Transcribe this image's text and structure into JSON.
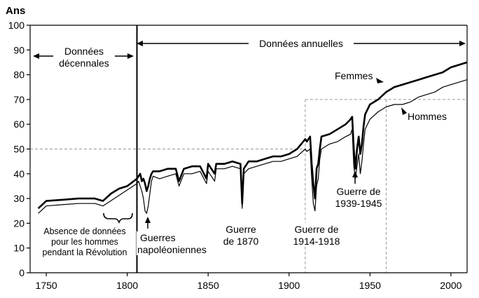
{
  "chart_data": {
    "type": "line",
    "title": "",
    "ylabel": "Ans",
    "xlabel": "",
    "xlim": [
      1740,
      2010
    ],
    "ylim": [
      0,
      100
    ],
    "xticks": [
      1750,
      1800,
      1850,
      1900,
      1950,
      2000
    ],
    "yticks": [
      0,
      10,
      20,
      30,
      40,
      50,
      60,
      70,
      80,
      90,
      100
    ],
    "xtick_labels": [
      "1750",
      "1800",
      "1850",
      "1900",
      "1950",
      "2000"
    ],
    "ytick_labels": [
      "0",
      "10",
      "20",
      "30",
      "40",
      "50",
      "60",
      "70",
      "80",
      "90",
      "100"
    ],
    "reference_lines": {
      "y_dashed": [
        50,
        70
      ],
      "x_dashed": [
        1910,
        1960
      ],
      "x_solid": 1806
    },
    "series": [
      {
        "name": "Femmes",
        "x": [
          1745,
          1750,
          1760,
          1770,
          1780,
          1785,
          1790,
          1795,
          1800,
          1806,
          1807,
          1808,
          1809,
          1810,
          1811,
          1812,
          1813,
          1814,
          1815,
          1816,
          1820,
          1825,
          1830,
          1832,
          1835,
          1840,
          1845,
          1849,
          1850,
          1854,
          1855,
          1860,
          1865,
          1870,
          1871,
          1872,
          1875,
          1880,
          1885,
          1890,
          1895,
          1900,
          1905,
          1910,
          1911,
          1913,
          1914,
          1915,
          1916,
          1917,
          1918,
          1919,
          1920,
          1925,
          1930,
          1935,
          1938,
          1939,
          1940,
          1941,
          1942,
          1943,
          1944,
          1945,
          1946,
          1947,
          1950,
          1955,
          1960,
          1965,
          1970,
          1975,
          1980,
          1985,
          1990,
          1995,
          2000,
          2005,
          2010
        ],
        "values": [
          26,
          29,
          29.5,
          30,
          30,
          29,
          32,
          34,
          35,
          38,
          39,
          40,
          37,
          38,
          36,
          33,
          35,
          38,
          40,
          41,
          41,
          42,
          42,
          37,
          42,
          43,
          43,
          38,
          44,
          40,
          44,
          44,
          45,
          44,
          28,
          42,
          45,
          45,
          46,
          47,
          47,
          48,
          50,
          54,
          53,
          55,
          44,
          36,
          30,
          42,
          44,
          50,
          55,
          56,
          58,
          60,
          62,
          63,
          50,
          42,
          50,
          55,
          48,
          52,
          59,
          64,
          68,
          70,
          73,
          75,
          76,
          77,
          78,
          79,
          80,
          81,
          83,
          84,
          85
        ]
      },
      {
        "name": "Hommes",
        "x": [
          1745,
          1750,
          1760,
          1770,
          1780,
          1785,
          1806,
          1807,
          1808,
          1809,
          1810,
          1811,
          1812,
          1813,
          1814,
          1815,
          1816,
          1820,
          1825,
          1830,
          1832,
          1835,
          1840,
          1845,
          1849,
          1850,
          1854,
          1855,
          1860,
          1865,
          1870,
          1871,
          1872,
          1875,
          1880,
          1885,
          1890,
          1895,
          1900,
          1905,
          1910,
          1911,
          1913,
          1914,
          1915,
          1916,
          1917,
          1918,
          1919,
          1920,
          1925,
          1930,
          1935,
          1938,
          1939,
          1940,
          1941,
          1942,
          1943,
          1944,
          1945,
          1946,
          1947,
          1950,
          1955,
          1960,
          1965,
          1970,
          1975,
          1980,
          1985,
          1990,
          1995,
          2000,
          2005,
          2010
        ],
        "values": [
          24,
          27,
          27.5,
          28,
          28,
          27,
          36,
          37,
          35,
          33,
          30,
          25,
          24,
          27,
          32,
          37,
          39,
          38,
          39,
          40,
          35,
          40,
          40,
          41,
          36,
          41,
          37,
          42,
          42,
          43,
          42,
          26,
          40,
          42,
          43,
          44,
          45,
          45,
          46,
          47,
          50,
          49,
          50,
          38,
          28,
          25,
          35,
          38,
          46,
          50,
          52,
          53,
          55,
          56,
          58,
          43,
          38,
          43,
          48,
          40,
          45,
          52,
          58,
          62,
          65,
          67,
          68,
          68,
          69,
          71,
          72,
          73,
          75,
          76,
          77,
          78
        ]
      }
    ],
    "labels": {
      "decennial": "Données décennales",
      "decennial_line1": "Données",
      "decennial_line2": "décennales",
      "annual": "Données annuelles",
      "femmes": "Femmes",
      "hommes": "Hommes",
      "absence_line1": "Absence de données",
      "absence_line2": "pour les hommes",
      "absence_line3": "pendant la Révolution",
      "napoleon_line1": "Guerres",
      "napoleon_line2": "napoléoniennes",
      "war1870_line1": "Guerre",
      "war1870_line2": "de 1870",
      "ww1_line1": "Guerre de",
      "ww1_line2": "1914-1918",
      "ww2_line1": "Guerre de",
      "ww2_line2": "1939-1945"
    }
  },
  "colors": {
    "line": "#000000",
    "reference": "#999999",
    "background": "#ffffff"
  }
}
